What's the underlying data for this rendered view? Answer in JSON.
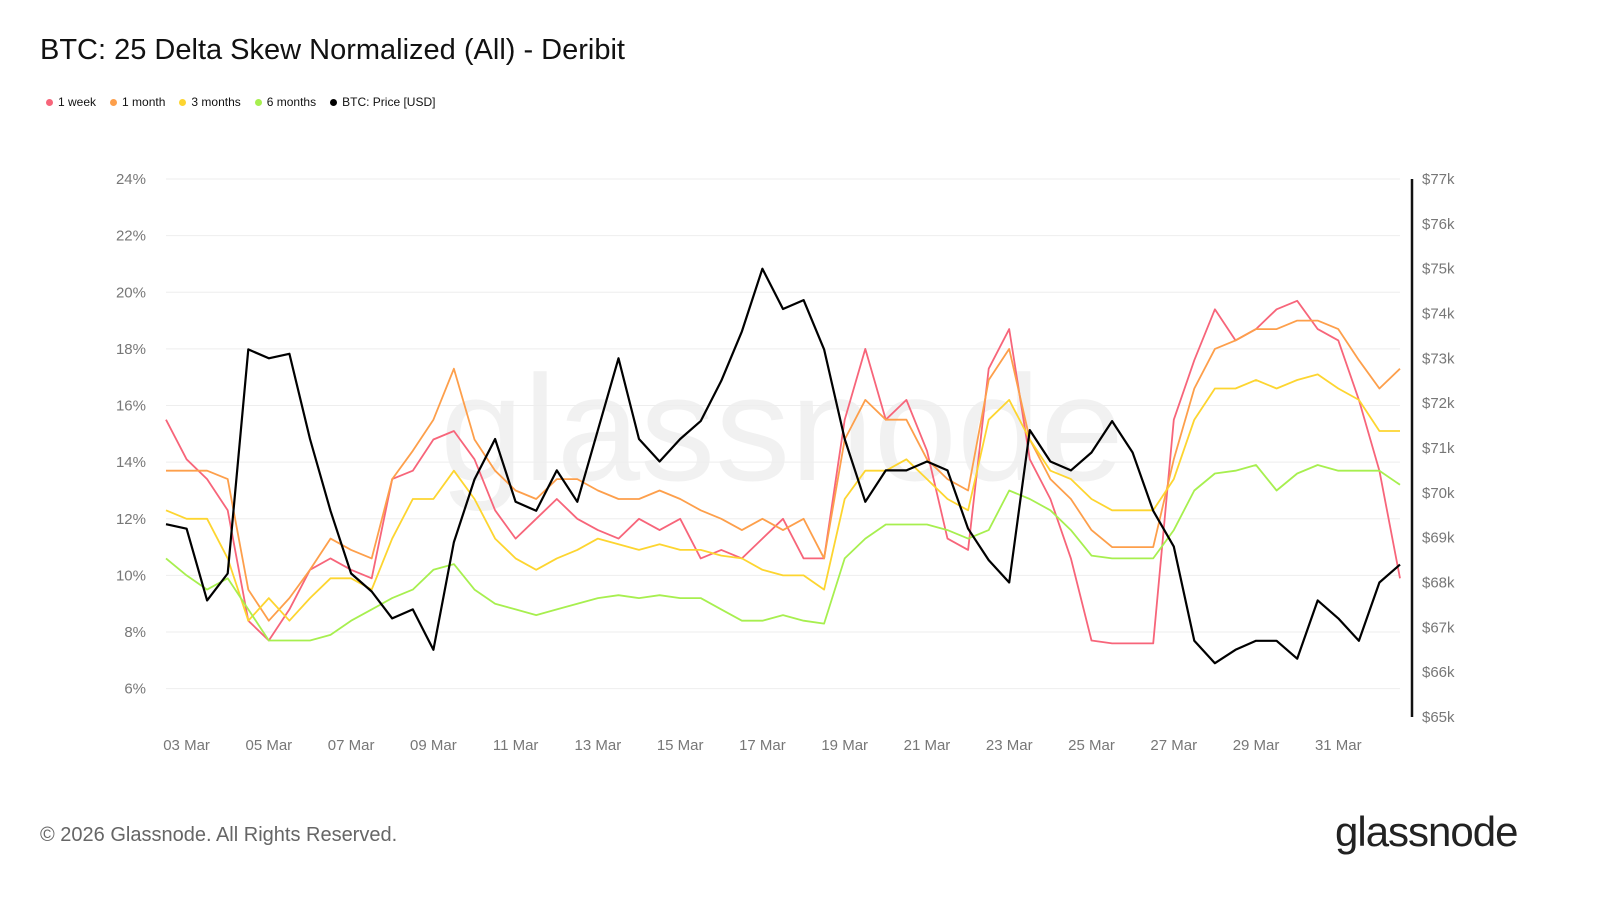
{
  "title": "BTC: 25 Delta Skew Normalized (All) - Deribit",
  "footer": "© 2026 Glassnode. All Rights Reserved.",
  "logo": "glassnode",
  "watermark": "glassnode",
  "chart_data": {
    "type": "line",
    "title": "BTC: 25 Delta Skew Normalized (All) - Deribit",
    "legend_position": "top-left",
    "grid": true,
    "x_tick_labels": [
      "03 Mar",
      "05 Mar",
      "07 Mar",
      "09 Mar",
      "11 Mar",
      "13 Mar",
      "15 Mar",
      "17 Mar",
      "19 Mar",
      "21 Mar",
      "23 Mar",
      "25 Mar",
      "27 Mar",
      "29 Mar",
      "31 Mar"
    ],
    "y_left": {
      "ylim": [
        5,
        24
      ],
      "tick_labels": [
        "6%",
        "8%",
        "10%",
        "12%",
        "14%",
        "16%",
        "18%",
        "20%",
        "22%",
        "24%"
      ],
      "ticks": [
        6,
        8,
        10,
        12,
        14,
        16,
        18,
        20,
        22,
        24
      ]
    },
    "y_right": {
      "ylim": [
        65000,
        77000
      ],
      "tick_labels": [
        "$65k",
        "$66k",
        "$67k",
        "$68k",
        "$69k",
        "$70k",
        "$71k",
        "$72k",
        "$73k",
        "$74k",
        "$75k",
        "$76k",
        "$77k"
      ],
      "ticks": [
        65000,
        66000,
        67000,
        68000,
        69000,
        70000,
        71000,
        72000,
        73000,
        74000,
        75000,
        76000,
        77000
      ]
    },
    "x": [
      "03-02 12:00",
      "03-03 00:00",
      "03-03 12:00",
      "03-04 00:00",
      "03-04 12:00",
      "03-05 00:00",
      "03-05 12:00",
      "03-06 00:00",
      "03-06 12:00",
      "03-07 00:00",
      "03-07 12:00",
      "03-08 00:00",
      "03-08 12:00",
      "03-09 00:00",
      "03-09 12:00",
      "03-10 00:00",
      "03-10 12:00",
      "03-11 00:00",
      "03-11 12:00",
      "03-12 00:00",
      "03-12 12:00",
      "03-13 00:00",
      "03-13 12:00",
      "03-14 00:00",
      "03-14 12:00",
      "03-15 00:00",
      "03-15 12:00",
      "03-16 00:00",
      "03-16 12:00",
      "03-17 00:00",
      "03-17 12:00",
      "03-18 00:00",
      "03-18 12:00",
      "03-19 00:00",
      "03-19 12:00",
      "03-20 00:00",
      "03-20 12:00",
      "03-21 00:00",
      "03-21 12:00",
      "03-22 00:00",
      "03-22 12:00",
      "03-23 00:00",
      "03-23 12:00",
      "03-24 00:00",
      "03-24 12:00",
      "03-25 00:00",
      "03-25 12:00",
      "03-26 00:00",
      "03-26 12:00",
      "03-27 00:00",
      "03-27 12:00",
      "03-28 00:00",
      "03-28 12:00",
      "03-29 00:00",
      "03-29 12:00",
      "03-30 00:00",
      "03-30 12:00",
      "03-31 00:00",
      "03-31 12:00",
      "04-01 00:00",
      "04-01 12:00"
    ],
    "series": [
      {
        "name": "1 week",
        "color": "#f7657a",
        "axis": "left",
        "values": [
          15.5,
          14.1,
          13.4,
          12.3,
          8.4,
          7.7,
          8.8,
          10.2,
          10.6,
          10.2,
          9.9,
          13.4,
          13.7,
          14.8,
          15.1,
          14.1,
          12.3,
          11.3,
          12.0,
          12.7,
          12.0,
          11.6,
          11.3,
          12.0,
          11.6,
          12.0,
          10.6,
          10.9,
          10.6,
          11.3,
          12.0,
          10.6,
          10.6,
          15.5,
          18.0,
          15.5,
          16.2,
          14.4,
          11.3,
          10.9,
          17.3,
          18.7,
          14.1,
          12.7,
          10.6,
          7.7,
          7.6,
          7.6,
          7.6,
          15.5,
          17.6,
          19.4,
          18.3,
          18.7,
          19.4,
          19.7,
          18.7,
          18.3,
          16.2,
          13.7,
          9.9
        ]
      },
      {
        "name": "1 month",
        "color": "#fd9f4b",
        "axis": "left",
        "values": [
          13.7,
          13.7,
          13.7,
          13.4,
          9.5,
          8.4,
          9.2,
          10.2,
          11.3,
          10.9,
          10.6,
          13.4,
          14.4,
          15.5,
          17.3,
          14.8,
          13.7,
          13.0,
          12.7,
          13.4,
          13.4,
          13.0,
          12.7,
          12.7,
          13.0,
          12.7,
          12.3,
          12.0,
          11.6,
          12.0,
          11.6,
          12.0,
          10.6,
          14.8,
          16.2,
          15.5,
          15.5,
          14.1,
          13.4,
          13.0,
          16.9,
          18.0,
          14.8,
          13.4,
          12.7,
          11.6,
          11.0,
          11.0,
          11.0,
          14.1,
          16.6,
          18.0,
          18.3,
          18.7,
          18.7,
          19.0,
          19.0,
          18.7,
          17.6,
          16.6,
          17.3
        ]
      },
      {
        "name": "3 months",
        "color": "#fdd530",
        "axis": "left",
        "values": [
          12.3,
          12.0,
          12.0,
          10.6,
          8.4,
          9.2,
          8.4,
          9.2,
          9.9,
          9.9,
          9.5,
          11.3,
          12.7,
          12.7,
          13.7,
          12.7,
          11.3,
          10.6,
          10.2,
          10.6,
          10.9,
          11.3,
          11.1,
          10.9,
          11.1,
          10.9,
          10.9,
          10.7,
          10.6,
          10.2,
          10.0,
          10.0,
          9.5,
          12.7,
          13.7,
          13.7,
          14.1,
          13.4,
          12.7,
          12.3,
          15.5,
          16.2,
          14.8,
          13.7,
          13.4,
          12.7,
          12.3,
          12.3,
          12.3,
          13.4,
          15.5,
          16.6,
          16.6,
          16.9,
          16.6,
          16.9,
          17.1,
          16.6,
          16.2,
          15.1,
          15.1
        ]
      },
      {
        "name": "6 months",
        "color": "#a7ef4f",
        "axis": "left",
        "values": [
          10.6,
          10.0,
          9.5,
          9.9,
          8.8,
          7.7,
          7.7,
          7.7,
          7.9,
          8.4,
          8.8,
          9.2,
          9.5,
          10.2,
          10.4,
          9.5,
          9.0,
          8.8,
          8.6,
          8.8,
          9.0,
          9.2,
          9.3,
          9.2,
          9.3,
          9.2,
          9.2,
          8.8,
          8.4,
          8.4,
          8.6,
          8.4,
          8.3,
          10.6,
          11.3,
          11.8,
          11.8,
          11.8,
          11.6,
          11.3,
          11.6,
          13.0,
          12.7,
          12.3,
          11.6,
          10.7,
          10.6,
          10.6,
          10.6,
          11.6,
          13.0,
          13.6,
          13.7,
          13.9,
          13.0,
          13.6,
          13.9,
          13.7,
          13.7,
          13.7,
          13.2
        ]
      },
      {
        "name": "BTC: Price [USD]",
        "color": "#000000",
        "axis": "right",
        "values": [
          69300,
          69200,
          67600,
          68200,
          73200,
          73000,
          73100,
          71200,
          69600,
          68200,
          67800,
          67200,
          67400,
          66500,
          68900,
          70300,
          71200,
          69800,
          69600,
          70500,
          69800,
          71400,
          73000,
          71200,
          70700,
          71200,
          71600,
          72500,
          73600,
          75000,
          74100,
          74300,
          73200,
          71200,
          69800,
          70500,
          70500,
          70700,
          70500,
          69200,
          68500,
          68000,
          71400,
          70700,
          70500,
          70900,
          71600,
          70900,
          69600,
          68800,
          66700,
          66200,
          66500,
          66700,
          66700,
          66300,
          67600,
          67200,
          66700,
          68000,
          68400
        ]
      }
    ]
  }
}
